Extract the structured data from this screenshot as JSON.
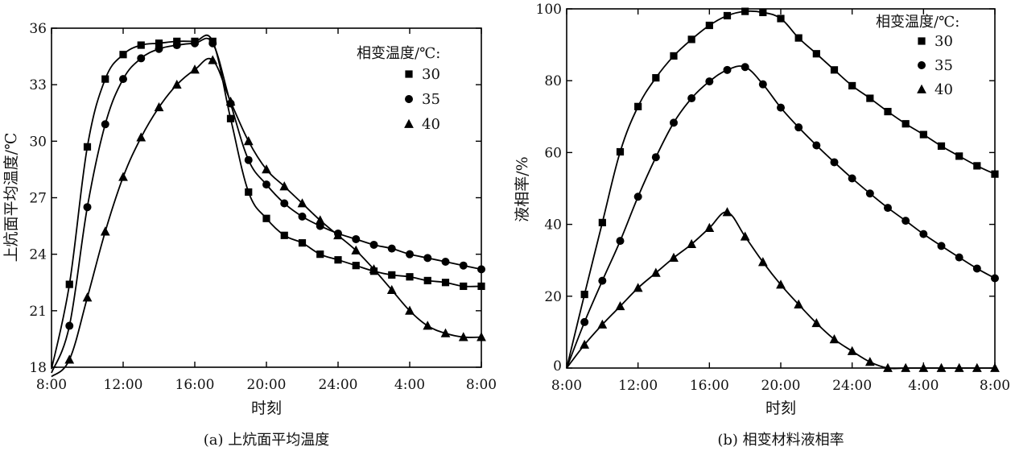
{
  "chart_data": [
    {
      "type": "line",
      "caption": "(a) 上炕面平均温度",
      "xlabel": "时刻",
      "ylabel": "上炕面平均温度/℃",
      "x_ticks": [
        "8:00",
        "12:00",
        "16:00",
        "20:00",
        "24:00",
        "4:00",
        "8:00"
      ],
      "x_range_hours": [
        0,
        24
      ],
      "y_ticks": [
        "18",
        "21",
        "24",
        "27",
        "30",
        "33",
        "36"
      ],
      "ylim": [
        18,
        36
      ],
      "legend": {
        "title": "相变温度/℃:",
        "position": "right"
      },
      "series": [
        {
          "name": "30",
          "marker": "square",
          "x": [
            0,
            1,
            2,
            3,
            4,
            5,
            6,
            7,
            8,
            9,
            10,
            11,
            12,
            13,
            14,
            15,
            16,
            17,
            18,
            19,
            20,
            21,
            22,
            23,
            24
          ],
          "y": [
            17.9,
            22.4,
            29.7,
            33.3,
            34.6,
            35.1,
            35.2,
            35.3,
            35.3,
            35.3,
            31.2,
            27.3,
            25.9,
            25.0,
            24.6,
            24.0,
            23.7,
            23.4,
            23.1,
            22.9,
            22.8,
            22.6,
            22.5,
            22.3,
            22.3
          ]
        },
        {
          "name": "35",
          "marker": "circle",
          "x": [
            0,
            1,
            2,
            3,
            4,
            5,
            6,
            7,
            8,
            9,
            10,
            11,
            12,
            13,
            14,
            15,
            16,
            17,
            18,
            19,
            20,
            21,
            22,
            23,
            24
          ],
          "y": [
            17.7,
            20.2,
            26.5,
            30.9,
            33.3,
            34.4,
            34.9,
            35.1,
            35.2,
            35.2,
            32.0,
            29.0,
            27.7,
            26.7,
            26.0,
            25.5,
            25.1,
            24.8,
            24.5,
            24.3,
            24.0,
            23.8,
            23.6,
            23.4,
            23.2
          ]
        },
        {
          "name": "40",
          "marker": "triangle",
          "x": [
            0,
            1,
            2,
            3,
            4,
            5,
            6,
            7,
            8,
            9,
            10,
            11,
            12,
            13,
            14,
            15,
            16,
            17,
            18,
            19,
            20,
            21,
            22,
            23,
            24
          ],
          "y": [
            17.5,
            18.4,
            21.7,
            25.2,
            28.1,
            30.2,
            31.8,
            33.0,
            33.8,
            34.3,
            32.1,
            30.0,
            28.5,
            27.6,
            26.7,
            25.8,
            25.0,
            24.2,
            23.2,
            22.1,
            21.0,
            20.2,
            19.8,
            19.6,
            19.6
          ]
        }
      ]
    },
    {
      "type": "line",
      "caption": "(b) 相变材料液相率",
      "xlabel": "时刻",
      "ylabel": "液相率/%",
      "x_ticks": [
        "8:00",
        "12:00",
        "16:00",
        "20:00",
        "24:00",
        "4:00",
        "8:00"
      ],
      "x_range_hours": [
        0,
        24
      ],
      "y_ticks": [
        "0",
        "20",
        "40",
        "60",
        "80",
        "100"
      ],
      "ylim": [
        0,
        100
      ],
      "legend": {
        "title": "相变温度/℃:",
        "position": "top-right"
      },
      "series": [
        {
          "name": "30",
          "marker": "square",
          "x": [
            0,
            1,
            2,
            3,
            4,
            5,
            6,
            7,
            8,
            9,
            10,
            11,
            12,
            13,
            14,
            15,
            16,
            17,
            18,
            19,
            20,
            21,
            22,
            23,
            24
          ],
          "y": [
            0,
            20.5,
            40.5,
            60.2,
            72.8,
            80.8,
            86.9,
            91.5,
            95.4,
            98.1,
            99.3,
            99.0,
            97.3,
            91.9,
            87.5,
            83.0,
            78.6,
            75.1,
            71.4,
            68.0,
            65.0,
            61.8,
            59.0,
            56.3,
            54.0
          ]
        },
        {
          "name": "35",
          "marker": "circle",
          "x": [
            0,
            1,
            2,
            3,
            4,
            5,
            6,
            7,
            8,
            9,
            10,
            11,
            12,
            13,
            14,
            15,
            16,
            17,
            18,
            19,
            20,
            21,
            22,
            23,
            24
          ],
          "y": [
            0,
            12.8,
            24.3,
            35.4,
            47.7,
            58.7,
            68.3,
            75.1,
            79.8,
            83.0,
            83.8,
            79.0,
            72.5,
            67.0,
            62.0,
            57.3,
            52.8,
            48.6,
            44.6,
            41.0,
            37.3,
            34.0,
            30.8,
            27.7,
            25.0
          ]
        },
        {
          "name": "40",
          "marker": "triangle",
          "x": [
            0,
            1,
            2,
            3,
            4,
            5,
            6,
            7,
            8,
            9,
            10,
            11,
            12,
            13,
            14,
            15,
            16,
            17,
            18,
            19,
            20,
            21,
            22,
            23,
            24
          ],
          "y": [
            0,
            6.5,
            12.1,
            17.2,
            22.3,
            26.5,
            30.7,
            34.5,
            39.0,
            43.4,
            36.6,
            29.5,
            23.2,
            17.7,
            12.5,
            8.0,
            4.7,
            1.7,
            0,
            0,
            0,
            0,
            0,
            0,
            0
          ]
        }
      ]
    }
  ]
}
